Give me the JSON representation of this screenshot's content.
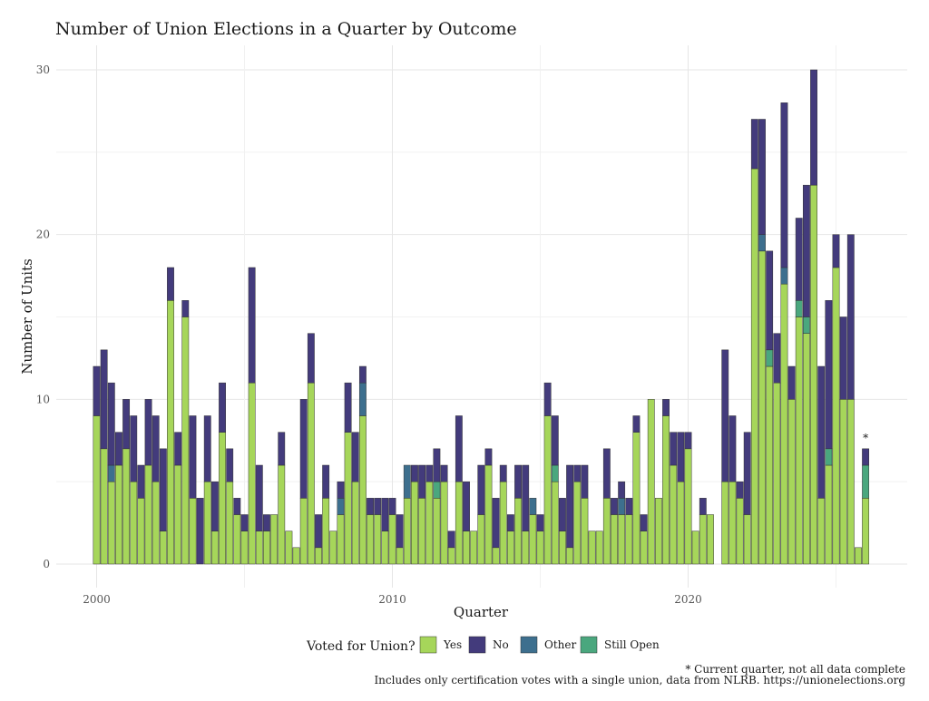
{
  "chart_data": {
    "type": "bar",
    "stacked": true,
    "title": "Number of Union Elections in a Quarter by Outcome",
    "xlabel": "Quarter",
    "ylabel": "Number of Units",
    "x_ticks": [
      2000,
      2010,
      2020
    ],
    "y_ticks": [
      0,
      10,
      20,
      30
    ],
    "ylim": [
      0,
      31.5
    ],
    "x_start": 2000.0,
    "x_step": 0.25,
    "legend": {
      "title": "Voted for Union?",
      "position": "bottom",
      "entries": [
        "Yes",
        "No",
        "Other",
        "Still Open"
      ]
    },
    "colors": {
      "Yes": "#a6d65a",
      "No": "#433b7c",
      "Other": "#3d6f8e",
      "Still Open": "#4aa77e"
    },
    "series": [
      {
        "name": "Yes",
        "values": [
          9,
          7,
          5,
          6,
          7,
          5,
          4,
          6,
          5,
          2,
          16,
          6,
          15,
          4,
          0,
          5,
          2,
          8,
          5,
          3,
          2,
          11,
          2,
          2,
          3,
          6,
          2,
          1,
          4,
          11,
          1,
          4,
          2,
          3,
          8,
          5,
          9,
          3,
          3,
          2,
          3,
          1,
          4,
          5,
          4,
          5,
          4,
          5,
          1,
          5,
          2,
          2,
          3,
          6,
          1,
          5,
          2,
          4,
          2,
          3,
          2,
          9,
          5,
          2,
          1,
          5,
          4,
          2,
          2,
          4,
          3,
          3,
          3,
          8,
          2,
          10,
          4,
          9,
          6,
          5,
          7,
          2,
          3,
          3,
          0,
          5,
          5,
          4,
          3,
          24,
          19,
          12,
          11,
          17,
          10,
          15,
          14,
          23,
          4,
          6,
          18,
          10,
          10,
          1,
          4
        ]
      },
      {
        "name": "No",
        "values": [
          3,
          6,
          5,
          2,
          3,
          4,
          2,
          4,
          4,
          5,
          2,
          2,
          1,
          5,
          4,
          4,
          3,
          3,
          2,
          1,
          1,
          7,
          4,
          1,
          0,
          2,
          0,
          0,
          6,
          3,
          2,
          2,
          0,
          1,
          3,
          3,
          1,
          1,
          1,
          2,
          1,
          2,
          0,
          1,
          2,
          1,
          2,
          1,
          1,
          4,
          3,
          0,
          3,
          1,
          3,
          1,
          1,
          2,
          4,
          0,
          1,
          2,
          3,
          2,
          5,
          1,
          2,
          0,
          0,
          3,
          1,
          1,
          1,
          1,
          1,
          0,
          0,
          1,
          2,
          3,
          1,
          0,
          1,
          0,
          0,
          8,
          4,
          1,
          5,
          3,
          7,
          6,
          3,
          10,
          2,
          5,
          8,
          7,
          8,
          9,
          2,
          5,
          10,
          0,
          1
        ]
      },
      {
        "name": "Other",
        "values": [
          0,
          0,
          1,
          0,
          0,
          0,
          0,
          0,
          0,
          0,
          0,
          0,
          0,
          0,
          0,
          0,
          0,
          0,
          0,
          0,
          0,
          0,
          0,
          0,
          0,
          0,
          0,
          0,
          0,
          0,
          0,
          0,
          0,
          1,
          0,
          0,
          2,
          0,
          0,
          0,
          0,
          0,
          2,
          0,
          0,
          0,
          0,
          0,
          0,
          0,
          0,
          0,
          0,
          0,
          0,
          0,
          0,
          0,
          0,
          1,
          0,
          0,
          0,
          0,
          0,
          0,
          0,
          0,
          0,
          0,
          0,
          1,
          0,
          0,
          0,
          0,
          0,
          0,
          0,
          0,
          0,
          0,
          0,
          0,
          0,
          0,
          0,
          0,
          0,
          0,
          1,
          0,
          0,
          1,
          0,
          0,
          0,
          0,
          0,
          0,
          0,
          0,
          0,
          0,
          0
        ]
      },
      {
        "name": "Still Open",
        "values": [
          0,
          0,
          0,
          0,
          0,
          0,
          0,
          0,
          0,
          0,
          0,
          0,
          0,
          0,
          0,
          0,
          0,
          0,
          0,
          0,
          0,
          0,
          0,
          0,
          0,
          0,
          0,
          0,
          0,
          0,
          0,
          0,
          0,
          0,
          0,
          0,
          0,
          0,
          0,
          0,
          0,
          0,
          0,
          0,
          0,
          0,
          1,
          0,
          0,
          0,
          0,
          0,
          0,
          0,
          0,
          0,
          0,
          0,
          0,
          0,
          0,
          0,
          1,
          0,
          0,
          0,
          0,
          0,
          0,
          0,
          0,
          0,
          0,
          0,
          0,
          0,
          0,
          0,
          0,
          0,
          0,
          0,
          0,
          0,
          0,
          0,
          0,
          0,
          0,
          0,
          0,
          1,
          0,
          0,
          0,
          1,
          1,
          0,
          0,
          1,
          0,
          0,
          0,
          0,
          2
        ]
      }
    ],
    "annotation": "*",
    "footnotes": [
      "* Current quarter, not all data complete",
      "Includes only certification votes with a single union, data from NLRB. https://unionelections.org"
    ]
  }
}
